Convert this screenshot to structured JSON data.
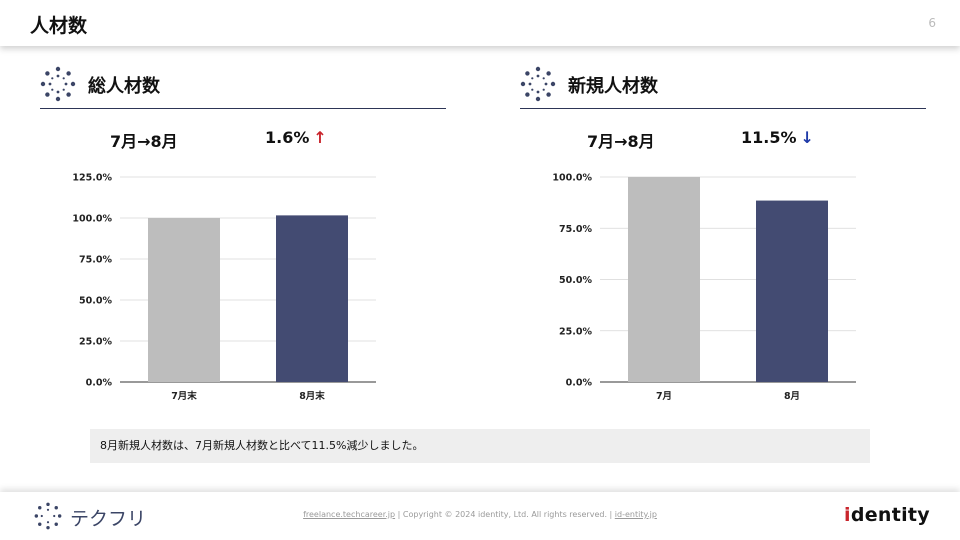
{
  "header": {
    "title": "人材数",
    "page_number": "6"
  },
  "sections": {
    "total": {
      "title": "総人材数",
      "period": "7月→8月",
      "change": "1.6%",
      "arrow": "↑",
      "direction": "up"
    },
    "new": {
      "title": "新規人材数",
      "period": "7月→8月",
      "change": "11.5%",
      "arrow": "↓",
      "direction": "down"
    }
  },
  "chart_data": [
    {
      "type": "bar",
      "categories": [
        "7月末",
        "8月末"
      ],
      "values": [
        100.0,
        101.6
      ],
      "ylim": [
        0,
        125
      ],
      "yticks": [
        "0.0%",
        "25.0%",
        "50.0%",
        "75.0%",
        "100.0%",
        "125.0%"
      ],
      "ytick_values": [
        0,
        25,
        50,
        75,
        100,
        125
      ],
      "colors": [
        "#bdbdbd",
        "#434b72"
      ],
      "grid": true
    },
    {
      "type": "bar",
      "categories": [
        "7月",
        "8月"
      ],
      "values": [
        100.0,
        88.5
      ],
      "ylim": [
        0,
        100
      ],
      "yticks": [
        "0.0%",
        "25.0%",
        "50.0%",
        "75.0%",
        "100.0%"
      ],
      "ytick_values": [
        0,
        25,
        50,
        75,
        100
      ],
      "colors": [
        "#bdbdbd",
        "#434b72"
      ],
      "grid": true
    }
  ],
  "note": "8月新規人材数は、7月新規人材数と比べて11.5%減少しました。",
  "footer": {
    "brand": "テクフリ",
    "link1": "freelance.techcareer.jp",
    "separator": "|",
    "copyright": "Copyright © 2024 identity, Ltd. All rights reserved.",
    "link2": "id-entity.jp",
    "logo_first": "i",
    "logo_rest": "dentity"
  },
  "colors": {
    "accent": "#434b72",
    "up": "#c9252c",
    "down": "#1f3aa8",
    "bar_prev": "#bdbdbd"
  }
}
